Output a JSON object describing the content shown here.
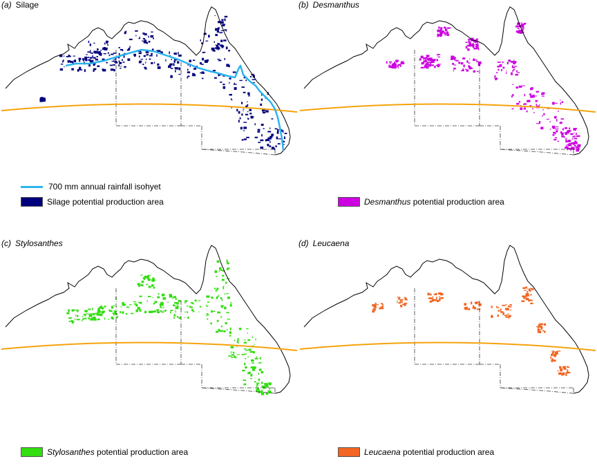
{
  "panels": [
    {
      "letter": "(a)",
      "name": "Silage",
      "italic": false,
      "color": "#00007d",
      "legend_label_italic": "",
      "legend_label_rest": "Silage potential production area"
    },
    {
      "letter": "(b)",
      "name": "Desmanthus",
      "italic": true,
      "color": "#cc00e0",
      "legend_label_italic": "Desmanthus",
      "legend_label_rest": " potential production area"
    },
    {
      "letter": "(c)",
      "name": "Stylosanthes",
      "italic": true,
      "color": "#33dd11",
      "legend_label_italic": "Stylosanthes",
      "legend_label_rest": " potential production area"
    },
    {
      "letter": "(d)",
      "name": "Leucaena",
      "italic": true,
      "color": "#f26522",
      "legend_label_italic": "Leucaena",
      "legend_label_rest": " potential production area"
    }
  ],
  "isohyet_legend": {
    "label": "700 mm annual rainfall isohyet",
    "color": "#2ab4ef"
  },
  "boundary_line_color": "#f5a20a",
  "coast_color": "#000000"
}
